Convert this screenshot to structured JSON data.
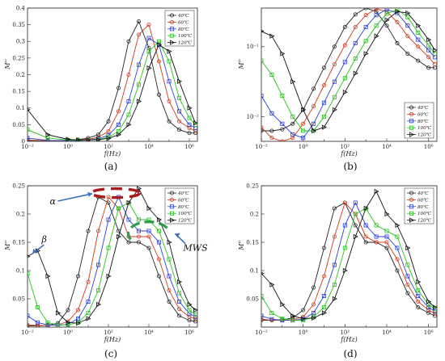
{
  "chart_data": [
    {
      "id": "a",
      "caption": "(a)",
      "type": "line",
      "xlabel": "f(Hz)",
      "ylabel": "M''",
      "xscale": "log",
      "yscale": "linear",
      "xlim": [
        -2,
        6.4
      ],
      "ylim": [
        0,
        0.4
      ],
      "xticks": [
        {
          "v": -2,
          "label": "10⁻²"
        },
        {
          "v": 0,
          "label": "10⁰"
        },
        {
          "v": 2,
          "label": "10²"
        },
        {
          "v": 4,
          "label": "10⁴"
        },
        {
          "v": 6,
          "label": "10⁶"
        }
      ],
      "yticks": [
        {
          "v": 0,
          "label": "0"
        },
        {
          "v": 0.05,
          "label": "0.05"
        },
        {
          "v": 0.1,
          "label": "0.1"
        },
        {
          "v": 0.15,
          "label": "0.15"
        },
        {
          "v": 0.2,
          "label": "0.2"
        },
        {
          "v": 0.25,
          "label": "0.25"
        },
        {
          "v": 0.3,
          "label": "0.3"
        },
        {
          "v": 0.35,
          "label": "0.35"
        },
        {
          "v": 0.4,
          "label": "0.4"
        }
      ],
      "legend_position": "top-right",
      "series": [
        {
          "name": "40℃",
          "color": "#222222",
          "marker": "circle",
          "x": [
            -2,
            -1,
            0,
            0.5,
            1,
            1.5,
            2,
            2.5,
            3,
            3.5,
            4,
            4.5,
            5,
            5.5,
            6,
            6.3
          ],
          "y": [
            0.003,
            0.002,
            0.003,
            0.005,
            0.01,
            0.02,
            0.06,
            0.16,
            0.3,
            0.36,
            0.28,
            0.14,
            0.06,
            0.035,
            0.025,
            0.025
          ]
        },
        {
          "name": "60℃",
          "color": "#cc3a1e",
          "marker": "circle",
          "x": [
            -2,
            -1,
            0,
            0.5,
            1,
            1.5,
            2,
            2.5,
            3,
            3.5,
            4,
            4.5,
            5,
            5.5,
            6,
            6.3
          ],
          "y": [
            0.004,
            0.002,
            0.002,
            0.004,
            0.006,
            0.012,
            0.03,
            0.09,
            0.2,
            0.32,
            0.35,
            0.24,
            0.12,
            0.06,
            0.04,
            0.03
          ]
        },
        {
          "name": "80℃",
          "color": "#2b3fd6",
          "marker": "square",
          "x": [
            -2,
            -1,
            0,
            0.5,
            1,
            1.5,
            2,
            2.5,
            3,
            3.5,
            4,
            4.5,
            5,
            5.5,
            6,
            6.3
          ],
          "y": [
            0.01,
            0.003,
            0.002,
            0.002,
            0.004,
            0.008,
            0.018,
            0.05,
            0.12,
            0.23,
            0.31,
            0.29,
            0.18,
            0.09,
            0.05,
            0.04
          ]
        },
        {
          "name": "100℃",
          "color": "#26c21f",
          "marker": "square",
          "x": [
            -2,
            -1,
            0,
            0.5,
            1,
            1.5,
            2,
            2.5,
            3,
            3.5,
            4,
            4.5,
            5,
            5.5,
            6,
            6.3
          ],
          "y": [
            0.035,
            0.01,
            0.004,
            0.003,
            0.004,
            0.006,
            0.012,
            0.03,
            0.08,
            0.17,
            0.27,
            0.3,
            0.24,
            0.13,
            0.07,
            0.05
          ]
        },
        {
          "name": "120℃",
          "color": "#111111",
          "marker": "triangle",
          "x": [
            -2,
            -1,
            0,
            0.5,
            1,
            1.5,
            2,
            2.5,
            3,
            3.5,
            4,
            4.5,
            5,
            5.5,
            6,
            6.3
          ],
          "y": [
            0.095,
            0.02,
            0.006,
            0.004,
            0.004,
            0.005,
            0.009,
            0.02,
            0.05,
            0.12,
            0.22,
            0.29,
            0.27,
            0.18,
            0.1,
            0.055
          ]
        }
      ]
    },
    {
      "id": "b",
      "caption": "(b)",
      "type": "line",
      "xlabel": "f(Hz)",
      "ylabel": "M''",
      "xscale": "log",
      "yscale": "log",
      "xlim": [
        -2,
        6.4
      ],
      "ylim": [
        -2.35,
        -0.45
      ],
      "xticks": [
        {
          "v": -2,
          "label": "10⁻²"
        },
        {
          "v": 0,
          "label": "10⁰"
        },
        {
          "v": 2,
          "label": "10²"
        },
        {
          "v": 4,
          "label": "10⁴"
        },
        {
          "v": 6,
          "label": "10⁶"
        }
      ],
      "yticks": [
        {
          "v": -2,
          "label": "10⁻²"
        },
        {
          "v": -1,
          "label": "10⁻¹"
        }
      ],
      "legend_position": "bottom-right",
      "series": [
        {
          "name": "40℃",
          "color": "#222222",
          "marker": "circle",
          "x": [
            -2,
            -1.5,
            -1,
            -0.5,
            0,
            0.5,
            1,
            1.5,
            2,
            2.5,
            3,
            3.5,
            4,
            4.5,
            5,
            5.5,
            6,
            6.3
          ],
          "y": [
            -2.2,
            -2.2,
            -2.18,
            -2.1,
            -1.9,
            -1.6,
            -1.3,
            -1.0,
            -0.72,
            -0.54,
            -0.45,
            -0.5,
            -0.7,
            -0.95,
            -1.1,
            -1.2,
            -1.3,
            -1.3
          ]
        },
        {
          "name": "60℃",
          "color": "#cc3a1e",
          "marker": "circle",
          "x": [
            -2,
            -1.5,
            -1,
            -0.5,
            0,
            0.5,
            1,
            1.5,
            2,
            2.5,
            3,
            3.5,
            4,
            4.5,
            5,
            5.5,
            6,
            6.3
          ],
          "y": [
            -2.15,
            -2.3,
            -2.35,
            -2.3,
            -2.1,
            -1.85,
            -1.55,
            -1.25,
            -0.98,
            -0.72,
            -0.55,
            -0.46,
            -0.5,
            -0.65,
            -0.85,
            -1.0,
            -1.15,
            -1.25
          ]
        },
        {
          "name": "80℃",
          "color": "#2b3fd6",
          "marker": "square",
          "x": [
            -2,
            -1.5,
            -1,
            -0.5,
            0,
            0.5,
            1,
            1.5,
            2,
            2.5,
            3,
            3.5,
            4,
            4.5,
            5,
            5.5,
            6,
            6.3
          ],
          "y": [
            -1.7,
            -1.95,
            -2.1,
            -2.25,
            -2.3,
            -2.1,
            -1.8,
            -1.5,
            -1.22,
            -0.95,
            -0.72,
            -0.55,
            -0.47,
            -0.52,
            -0.7,
            -0.9,
            -1.05,
            -1.15
          ]
        },
        {
          "name": "100℃",
          "color": "#26c21f",
          "marker": "square",
          "x": [
            -2,
            -1.5,
            -1,
            -0.5,
            0,
            0.5,
            1,
            1.5,
            2,
            2.5,
            3,
            3.5,
            4,
            4.5,
            5,
            5.5,
            6,
            6.3
          ],
          "y": [
            -1.2,
            -1.4,
            -1.7,
            -2.0,
            -2.2,
            -2.2,
            -2.0,
            -1.72,
            -1.45,
            -1.17,
            -0.92,
            -0.7,
            -0.53,
            -0.47,
            -0.58,
            -0.8,
            -0.98,
            -1.1
          ]
        },
        {
          "name": "120℃",
          "color": "#111111",
          "marker": "triangle",
          "x": [
            -2,
            -1.5,
            -1,
            -0.5,
            0,
            0.5,
            1,
            1.5,
            2,
            2.5,
            3,
            3.5,
            4,
            4.5,
            5,
            5.5,
            6,
            6.3
          ],
          "y": [
            -0.78,
            -0.85,
            -1.1,
            -1.5,
            -1.9,
            -2.2,
            -2.15,
            -1.9,
            -1.65,
            -1.38,
            -1.1,
            -0.85,
            -0.62,
            -0.5,
            -0.52,
            -0.7,
            -0.9,
            -1.05
          ]
        }
      ]
    },
    {
      "id": "c",
      "caption": "(c)",
      "type": "line",
      "xlabel": "f(Hz)",
      "ylabel": "M''",
      "xscale": "log",
      "yscale": "linear",
      "xlim": [
        -2,
        6.4
      ],
      "ylim": [
        0,
        0.25
      ],
      "xticks": [
        {
          "v": -2,
          "label": "10⁻²"
        },
        {
          "v": 0,
          "label": "10⁰"
        },
        {
          "v": 2,
          "label": "10²"
        },
        {
          "v": 4,
          "label": "10⁴"
        },
        {
          "v": 6,
          "label": "10⁶"
        }
      ],
      "yticks": [
        {
          "v": 0.05,
          "label": "0.05"
        },
        {
          "v": 0.1,
          "label": "0.1"
        },
        {
          "v": 0.15,
          "label": "0.15"
        },
        {
          "v": 0.2,
          "label": "0.2"
        },
        {
          "v": 0.25,
          "label": "0.25"
        }
      ],
      "legend_position": "top-right",
      "annotations": [
        {
          "text": "α",
          "x": -0.9,
          "y": 0.22
        },
        {
          "text": "β",
          "x": -1.3,
          "y": 0.15
        },
        {
          "text": "MWS",
          "x": 5.7,
          "y": 0.135
        }
      ],
      "series": [
        {
          "name": "40℃",
          "color": "#222222",
          "marker": "circle",
          "x": [
            -2,
            -1.5,
            -1,
            -0.5,
            0,
            0.5,
            1,
            1.5,
            2,
            2.5,
            3,
            3.5,
            4,
            4.5,
            5,
            5.5,
            6,
            6.3
          ],
          "y": [
            0.002,
            0.002,
            0.003,
            0.007,
            0.03,
            0.09,
            0.17,
            0.23,
            0.22,
            0.17,
            0.15,
            0.15,
            0.14,
            0.09,
            0.045,
            0.02,
            0.012,
            0.01
          ]
        },
        {
          "name": "60℃",
          "color": "#cc3a1e",
          "marker": "circle",
          "x": [
            -2,
            -1.5,
            -1,
            -0.5,
            0,
            0.5,
            1,
            1.5,
            2,
            2.5,
            3,
            3.5,
            4,
            4.5,
            5,
            5.5,
            6,
            6.3
          ],
          "y": [
            0.004,
            0.003,
            0.003,
            0.004,
            0.01,
            0.03,
            0.08,
            0.17,
            0.23,
            0.21,
            0.16,
            0.16,
            0.16,
            0.12,
            0.065,
            0.032,
            0.018,
            0.014
          ]
        },
        {
          "name": "80℃",
          "color": "#2b3fd6",
          "marker": "square",
          "x": [
            -2,
            -1.5,
            -1,
            -0.5,
            0,
            0.5,
            1,
            1.5,
            2,
            2.5,
            3,
            3.5,
            4,
            4.5,
            5,
            5.5,
            6,
            6.3
          ],
          "y": [
            0.02,
            0.008,
            0.004,
            0.003,
            0.005,
            0.015,
            0.045,
            0.11,
            0.19,
            0.23,
            0.19,
            0.17,
            0.17,
            0.15,
            0.09,
            0.045,
            0.024,
            0.018
          ]
        },
        {
          "name": "100℃",
          "color": "#26c21f",
          "marker": "square",
          "x": [
            -2,
            -1.5,
            -1,
            -0.5,
            0,
            0.5,
            1,
            1.5,
            2,
            2.5,
            3,
            3.5,
            4,
            4.5,
            5,
            5.5,
            6,
            6.3
          ],
          "y": [
            0.095,
            0.035,
            0.008,
            0.004,
            0.004,
            0.008,
            0.025,
            0.065,
            0.14,
            0.21,
            0.22,
            0.19,
            0.19,
            0.17,
            0.12,
            0.06,
            0.03,
            0.022
          ]
        },
        {
          "name": "120℃",
          "color": "#111111",
          "marker": "triangle",
          "x": [
            -2,
            -1.5,
            -1,
            -0.5,
            0,
            0.5,
            1,
            1.5,
            2,
            2.5,
            3,
            3.5,
            4,
            4.5,
            5,
            5.5,
            6,
            6.3
          ],
          "y": [
            0.125,
            0.135,
            0.09,
            0.025,
            0.008,
            0.007,
            0.015,
            0.04,
            0.09,
            0.16,
            0.22,
            0.245,
            0.21,
            0.19,
            0.15,
            0.08,
            0.04,
            0.03
          ]
        }
      ]
    },
    {
      "id": "d",
      "caption": "(d)",
      "type": "line",
      "xlabel": "f(Hz)",
      "ylabel": "M''",
      "xscale": "log",
      "yscale": "linear",
      "xlim": [
        -2,
        6.4
      ],
      "ylim": [
        0,
        0.25
      ],
      "xticks": [
        {
          "v": -2,
          "label": "10⁻²"
        },
        {
          "v": 0,
          "label": "10⁰"
        },
        {
          "v": 2,
          "label": "10²"
        },
        {
          "v": 4,
          "label": "10⁴"
        },
        {
          "v": 6,
          "label": "10⁶"
        }
      ],
      "yticks": [
        {
          "v": 0.05,
          "label": "0.05"
        },
        {
          "v": 0.1,
          "label": "0.1"
        },
        {
          "v": 0.15,
          "label": "0.15"
        },
        {
          "v": 0.2,
          "label": "0.2"
        },
        {
          "v": 0.25,
          "label": "0.25"
        }
      ],
      "legend_position": "top-right",
      "series": [
        {
          "name": "40℃",
          "color": "#222222",
          "marker": "circle",
          "x": [
            -2,
            -1.5,
            -1,
            -0.5,
            0,
            0.5,
            1,
            1.5,
            2,
            2.5,
            3,
            3.5,
            4,
            4.5,
            5,
            5.5,
            6,
            6.3
          ],
          "y": [
            0.012,
            0.012,
            0.013,
            0.016,
            0.03,
            0.07,
            0.14,
            0.21,
            0.22,
            0.18,
            0.15,
            0.15,
            0.14,
            0.1,
            0.06,
            0.035,
            0.025,
            0.02
          ]
        },
        {
          "name": "60℃",
          "color": "#cc3a1e",
          "marker": "circle",
          "x": [
            -2,
            -1.5,
            -1,
            -0.5,
            0,
            0.5,
            1,
            1.5,
            2,
            2.5,
            3,
            3.5,
            4,
            4.5,
            5,
            5.5,
            6,
            6.3
          ],
          "y": [
            0.014,
            0.012,
            0.012,
            0.013,
            0.018,
            0.04,
            0.09,
            0.16,
            0.22,
            0.2,
            0.16,
            0.15,
            0.15,
            0.12,
            0.075,
            0.045,
            0.03,
            0.024
          ]
        },
        {
          "name": "80℃",
          "color": "#2b3fd6",
          "marker": "square",
          "x": [
            -2,
            -1.5,
            -1,
            -0.5,
            0,
            0.5,
            1,
            1.5,
            2,
            2.5,
            3,
            3.5,
            4,
            4.5,
            5,
            5.5,
            6,
            6.3
          ],
          "y": [
            0.02,
            0.014,
            0.012,
            0.012,
            0.014,
            0.025,
            0.055,
            0.11,
            0.18,
            0.22,
            0.18,
            0.16,
            0.16,
            0.14,
            0.09,
            0.055,
            0.035,
            0.028
          ]
        },
        {
          "name": "100℃",
          "color": "#26c21f",
          "marker": "square",
          "x": [
            -2,
            -1.5,
            -1,
            -0.5,
            0,
            0.5,
            1,
            1.5,
            2,
            2.5,
            3,
            3.5,
            4,
            4.5,
            5,
            5.5,
            6,
            6.3
          ],
          "y": [
            0.055,
            0.025,
            0.015,
            0.012,
            0.012,
            0.018,
            0.035,
            0.075,
            0.14,
            0.2,
            0.21,
            0.18,
            0.17,
            0.16,
            0.11,
            0.065,
            0.04,
            0.032
          ]
        },
        {
          "name": "120℃",
          "color": "#111111",
          "marker": "triangle",
          "x": [
            -2,
            -1.5,
            -1,
            -0.5,
            0,
            0.5,
            1,
            1.5,
            2,
            2.5,
            3,
            3.5,
            4,
            4.5,
            5,
            5.5,
            6,
            6.3
          ],
          "y": [
            0.095,
            0.075,
            0.04,
            0.02,
            0.015,
            0.016,
            0.025,
            0.05,
            0.1,
            0.16,
            0.21,
            0.24,
            0.2,
            0.18,
            0.14,
            0.08,
            0.045,
            0.035
          ]
        }
      ]
    }
  ]
}
